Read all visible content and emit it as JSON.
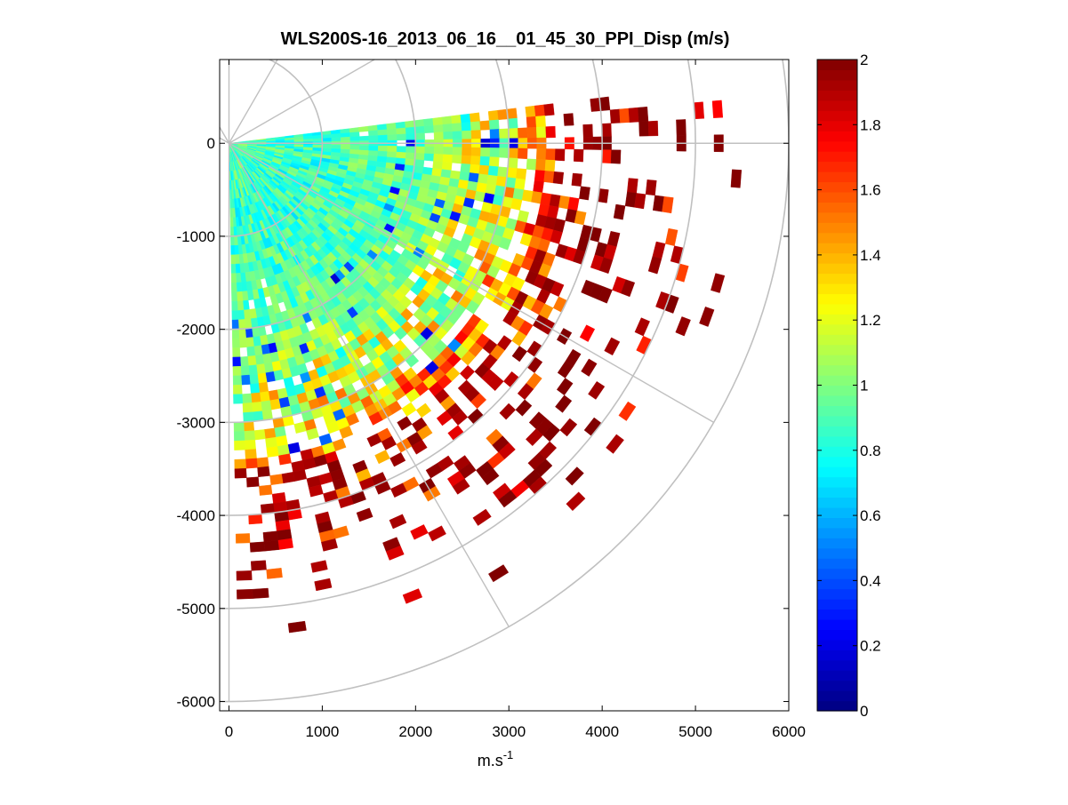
{
  "chart_data": {
    "type": "heatmap",
    "subtype": "polar-ppi-sector",
    "title": "WLS200S-16_2013_06_16__01_45_30_PPI_Disp (m/s)",
    "xlabel": "m.s",
    "xlabel_superscript": "-1",
    "ylabel": "",
    "xlim": [
      -100,
      6000
    ],
    "ylim": [
      -6100,
      900
    ],
    "xticks": [
      0,
      1000,
      2000,
      3000,
      4000,
      5000,
      6000
    ],
    "xtick_labels": [
      "0",
      "1000",
      "2000",
      "3000",
      "4000",
      "5000",
      "6000"
    ],
    "yticks": [
      0,
      -1000,
      -2000,
      -3000,
      -4000,
      -5000,
      -6000
    ],
    "ytick_labels": [
      "0",
      "-1000",
      "-2000",
      "-3000",
      "-4000",
      "-5000",
      "-6000"
    ],
    "polar_grid": {
      "rings": [
        1000,
        2000,
        3000,
        4000,
        5000,
        6000
      ],
      "spokes_deg_from_north": [
        30,
        60,
        90,
        120,
        150,
        180
      ]
    },
    "sector": {
      "azimuth_start_deg": 83,
      "azimuth_end_deg": 178,
      "azimuth_step_deg": 2,
      "range_step_m": 100
    },
    "colorbar": {
      "colormap": "jet",
      "clim": [
        0,
        2
      ],
      "ticks": [
        0,
        0.2,
        0.4,
        0.6,
        0.8,
        1,
        1.2,
        1.4,
        1.6,
        1.8,
        2
      ],
      "tick_labels": [
        "0",
        "0.2",
        "0.4",
        "0.6",
        "0.8",
        "1",
        "1.2",
        "1.4",
        "1.6",
        "1.8",
        "2"
      ]
    },
    "value_profile": {
      "note": "approximate range-dependent dispersion read from the colour map",
      "range_m": [
        0,
        1000,
        2000,
        3000,
        3500,
        4000,
        5000,
        5500
      ],
      "typical_value": [
        0.9,
        0.85,
        0.95,
        1.2,
        1.6,
        1.8,
        1.95,
        2.0
      ],
      "coverage_fraction": [
        1.0,
        1.0,
        0.97,
        0.85,
        0.55,
        0.3,
        0.12,
        0.05
      ]
    }
  }
}
